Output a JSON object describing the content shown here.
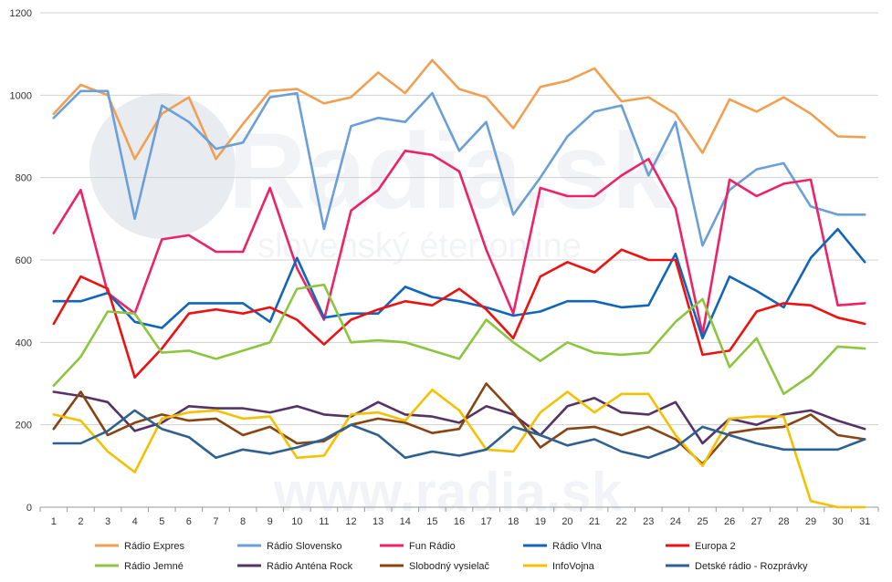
{
  "watermark": {
    "brand": "Radia.sk",
    "tagline": "slovenský éter online",
    "footer": "www.radia.sk"
  },
  "chart_data": {
    "type": "line",
    "x": [
      1,
      2,
      3,
      4,
      5,
      6,
      7,
      8,
      9,
      10,
      11,
      12,
      13,
      14,
      15,
      16,
      17,
      18,
      19,
      20,
      21,
      22,
      23,
      24,
      25,
      26,
      27,
      28,
      29,
      30,
      31
    ],
    "ylim": [
      0,
      1200
    ],
    "yticks": [
      0,
      200,
      400,
      600,
      800,
      1000,
      1200
    ],
    "grid": true,
    "legend": "bottom",
    "series": [
      {
        "name": "Rádio Expres",
        "color": "#f0a050",
        "values": [
          955,
          1025,
          1000,
          845,
          955,
          995,
          845,
          930,
          1010,
          1015,
          980,
          995,
          1055,
          1005,
          1085,
          1015,
          995,
          920,
          1020,
          1035,
          1065,
          985,
          995,
          955,
          860,
          990,
          960,
          995,
          955,
          900,
          898
        ]
      },
      {
        "name": "Rádio Slovensko",
        "color": "#6a9fd8",
        "values": [
          945,
          1010,
          1010,
          700,
          975,
          935,
          870,
          885,
          995,
          1005,
          675,
          925,
          945,
          935,
          1005,
          865,
          935,
          710,
          800,
          900,
          960,
          975,
          805,
          935,
          635,
          770,
          820,
          835,
          730,
          710,
          710
        ]
      },
      {
        "name": "Fun Rádio",
        "color": "#ee2266",
        "values": [
          665,
          770,
          520,
          470,
          650,
          660,
          620,
          620,
          775,
          580,
          455,
          720,
          770,
          865,
          855,
          815,
          625,
          470,
          775,
          755,
          755,
          805,
          845,
          725,
          420,
          795,
          755,
          785,
          795,
          490,
          495
        ]
      },
      {
        "name": "Rádio Vlna",
        "color": "#1166bb",
        "values": [
          500,
          500,
          520,
          450,
          435,
          495,
          495,
          495,
          450,
          605,
          460,
          470,
          470,
          535,
          510,
          500,
          485,
          465,
          475,
          500,
          500,
          485,
          490,
          615,
          410,
          560,
          525,
          485,
          605,
          675,
          595
        ]
      },
      {
        "name": "Europa 2",
        "color": "#ee1111",
        "values": [
          445,
          560,
          530,
          315,
          385,
          470,
          480,
          470,
          485,
          455,
          395,
          455,
          480,
          500,
          490,
          530,
          480,
          410,
          560,
          595,
          570,
          625,
          600,
          600,
          370,
          380,
          475,
          495,
          490,
          460,
          445
        ]
      },
      {
        "name": "Rádio Jemné",
        "color": "#8cc63f",
        "values": [
          295,
          365,
          475,
          470,
          375,
          380,
          360,
          380,
          400,
          530,
          540,
          400,
          405,
          400,
          380,
          360,
          455,
          400,
          355,
          400,
          375,
          370,
          375,
          450,
          505,
          340,
          410,
          275,
          320,
          390,
          385
        ]
      },
      {
        "name": "Rádio Anténa Rock",
        "color": "#553366",
        "values": [
          280,
          270,
          255,
          185,
          205,
          245,
          240,
          240,
          230,
          245,
          225,
          220,
          255,
          225,
          220,
          205,
          245,
          225,
          175,
          245,
          265,
          230,
          225,
          255,
          155,
          215,
          200,
          225,
          235,
          210,
          190
        ]
      },
      {
        "name": "Slobodný vysielač",
        "color": "#884411",
        "values": [
          190,
          280,
          175,
          205,
          225,
          210,
          215,
          175,
          195,
          155,
          160,
          200,
          215,
          205,
          180,
          190,
          300,
          230,
          145,
          190,
          195,
          175,
          195,
          165,
          105,
          180,
          190,
          195,
          225,
          175,
          165
        ]
      },
      {
        "name": "InfoVojna",
        "color": "#f5c000",
        "values": [
          225,
          210,
          135,
          85,
          215,
          230,
          235,
          215,
          220,
          120,
          125,
          225,
          230,
          210,
          285,
          235,
          140,
          135,
          230,
          280,
          230,
          275,
          275,
          175,
          100,
          215,
          220,
          220,
          15,
          0,
          0
        ]
      },
      {
        "name": "Detské rádio - Rozprávky",
        "color": "#2e6090",
        "values": [
          155,
          155,
          185,
          235,
          190,
          170,
          120,
          140,
          130,
          145,
          165,
          200,
          175,
          120,
          135,
          125,
          140,
          195,
          175,
          150,
          165,
          135,
          120,
          145,
          195,
          175,
          155,
          140,
          140,
          140,
          165
        ]
      }
    ]
  }
}
